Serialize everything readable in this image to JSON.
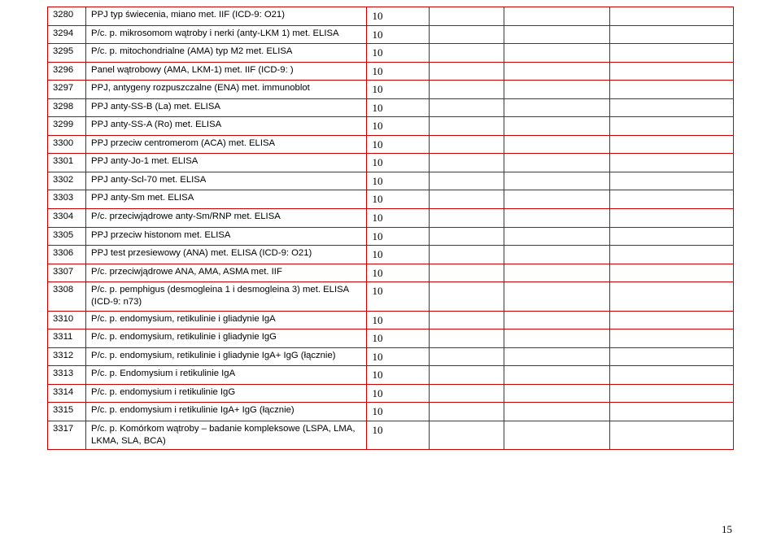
{
  "table": {
    "border_color": "#cc0000",
    "columns": [
      "code",
      "description",
      "value",
      "blank1",
      "blank2",
      "blank3"
    ],
    "rows": [
      {
        "code": "3280",
        "desc": "PPJ typ świecenia, miano met. IIF (ICD-9: O21)",
        "val": "10"
      },
      {
        "code": "3294",
        "desc": "P/c. p. mikrosomom wątroby i nerki (anty-LKM 1) met. ELISA",
        "val": "10"
      },
      {
        "code": "3295",
        "desc": "P/c. p. mitochondrialne (AMA) typ M2 met. ELISA",
        "val": "10"
      },
      {
        "code": "3296",
        "desc": "Panel wątrobowy (AMA, LKM-1) met. IIF (ICD-9: )",
        "val": "10"
      },
      {
        "code": "3297",
        "desc": "PPJ, antygeny rozpuszczalne (ENA) met. immunoblot",
        "val": "10"
      },
      {
        "code": "3298",
        "desc": "PPJ anty-SS-B (La) met. ELISA",
        "val": "10"
      },
      {
        "code": "3299",
        "desc": "PPJ anty-SS-A (Ro) met. ELISA",
        "val": "10"
      },
      {
        "code": "3300",
        "desc": "PPJ przeciw centromerom (ACA) met. ELISA",
        "val": "10"
      },
      {
        "code": "3301",
        "desc": "PPJ anty-Jo-1 met. ELISA",
        "val": "10"
      },
      {
        "code": "3302",
        "desc": "PPJ anty-Scl-70 met. ELISA",
        "val": "10"
      },
      {
        "code": "3303",
        "desc": "PPJ anty-Sm met. ELISA",
        "val": "10"
      },
      {
        "code": "3304",
        "desc": "P/c. przeciwjądrowe anty-Sm/RNP met. ELISA",
        "val": "10"
      },
      {
        "code": "3305",
        "desc": "PPJ przeciw histonom met. ELISA",
        "val": "10"
      },
      {
        "code": "3306",
        "desc": "PPJ test przesiewowy (ANA) met. ELISA (ICD-9: O21)",
        "val": "10"
      },
      {
        "code": "3307",
        "desc": "P/c. przeciwjądrowe ANA, AMA, ASMA met. IIF",
        "val": "10"
      },
      {
        "code": "3308",
        "desc": "P/c. p. pemphigus (desmogleina 1 i desmogleina 3) met. ELISA (ICD-9: n73)",
        "val": "10"
      },
      {
        "code": "3310",
        "desc": "P/c. p. endomysium, retikulinie i gliadynie IgA",
        "val": "10"
      },
      {
        "code": "3311",
        "desc": "P/c. p. endomysium, retikulinie i gliadynie IgG",
        "val": "10"
      },
      {
        "code": "3312",
        "desc": "P/c. p. endomysium, retikulinie i gliadynie IgA+ IgG (łącznie)",
        "val": "10"
      },
      {
        "code": "3313",
        "desc": "P/c. p. Endomysium i retikulinie IgA",
        "val": "10"
      },
      {
        "code": "3314",
        "desc": "P/c. p. endomysium i retikulinie IgG",
        "val": "10"
      },
      {
        "code": "3315",
        "desc": "P/c. p. endomysium i retikulinie IgA+ IgG (łącznie)",
        "val": "10"
      },
      {
        "code": "3317",
        "desc": "P/c. p. Komórkom wątroby – badanie kompleksowe (LSPA, LMA, LKMA, SLA, BCA)",
        "val": "10"
      }
    ]
  },
  "page_number": "15"
}
